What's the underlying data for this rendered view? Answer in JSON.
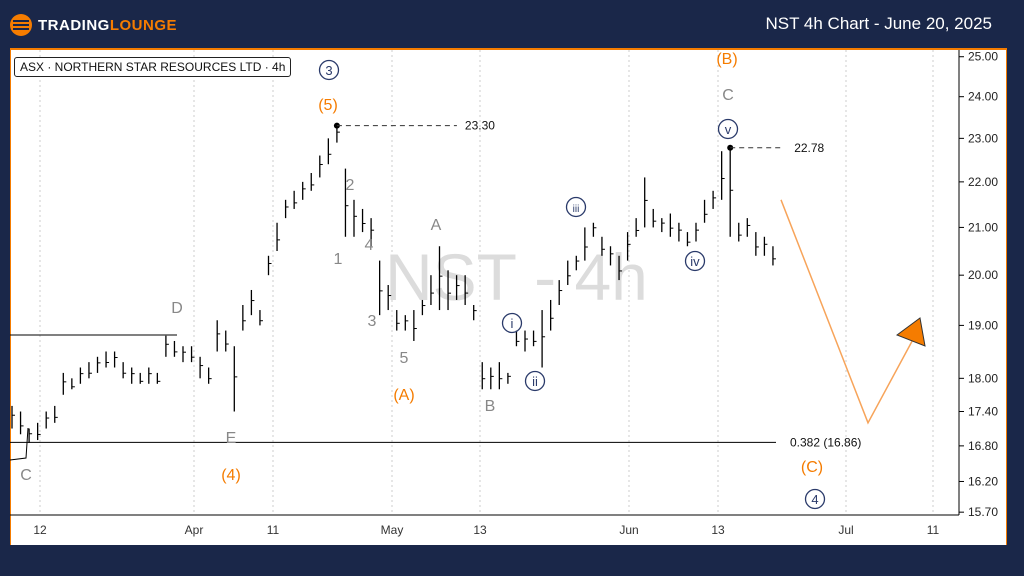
{
  "header": {
    "brand_part1": "TRADING",
    "brand_part2": "LOUNGE",
    "title": "NST 4h Chart - June 20, 2025"
  },
  "symbol_label": "ASX · NORTHERN STAR RESOURCES LTD · 4h",
  "watermark": "NST - 4h",
  "colors": {
    "header_bg": "#1a2749",
    "accent": "#f57c00",
    "wave_navy": "#2a3a6a",
    "wave_gray": "#888888"
  },
  "chart_data": {
    "type": "ohlc-bar",
    "y_scale": "log",
    "ylim": [
      15.7,
      25.0
    ],
    "y_ticks": [
      "25.00",
      "24.00",
      "23.00",
      "22.00",
      "21.00",
      "20.00",
      "19.00",
      "18.00",
      "17.40",
      "16.80",
      "16.20",
      "15.70"
    ],
    "x_ticks": [
      "12",
      "Apr",
      "11",
      "May",
      "13",
      "Jun",
      "13",
      "Jul",
      "11"
    ],
    "grid": "vertical dotted",
    "bars_high_low": [
      [
        17.5,
        17.1
      ],
      [
        17.4,
        17.0
      ],
      [
        17.1,
        16.85
      ],
      [
        17.2,
        16.9
      ],
      [
        17.4,
        17.1
      ],
      [
        17.5,
        17.2
      ],
      [
        18.1,
        17.7
      ],
      [
        18.0,
        17.8
      ],
      [
        18.2,
        17.9
      ],
      [
        18.3,
        18.0
      ],
      [
        18.4,
        18.1
      ],
      [
        18.5,
        18.2
      ],
      [
        18.5,
        18.2
      ],
      [
        18.3,
        18.0
      ],
      [
        18.2,
        17.9
      ],
      [
        18.1,
        17.9
      ],
      [
        18.2,
        17.9
      ],
      [
        18.1,
        17.9
      ],
      [
        18.8,
        18.4
      ],
      [
        18.7,
        18.4
      ],
      [
        18.6,
        18.3
      ],
      [
        18.6,
        18.3
      ],
      [
        18.4,
        18.0
      ],
      [
        18.2,
        17.9
      ],
      [
        19.1,
        18.5
      ],
      [
        18.9,
        18.5
      ],
      [
        18.6,
        17.4
      ],
      [
        19.4,
        18.9
      ],
      [
        19.7,
        19.2
      ],
      [
        19.3,
        19.0
      ],
      [
        20.4,
        20.0
      ],
      [
        21.1,
        20.5
      ],
      [
        21.6,
        21.2
      ],
      [
        21.8,
        21.4
      ],
      [
        22.0,
        21.6
      ],
      [
        22.2,
        21.8
      ],
      [
        22.6,
        22.1
      ],
      [
        23.0,
        22.4
      ],
      [
        23.3,
        22.9
      ],
      [
        22.3,
        20.8
      ],
      [
        21.6,
        20.8
      ],
      [
        21.4,
        20.9
      ],
      [
        21.2,
        20.6
      ],
      [
        20.3,
        19.2
      ],
      [
        19.8,
        19.3
      ],
      [
        19.3,
        18.9
      ],
      [
        19.2,
        18.9
      ],
      [
        19.3,
        18.7
      ],
      [
        19.5,
        19.2
      ],
      [
        20.0,
        19.4
      ],
      [
        20.6,
        19.3
      ],
      [
        20.1,
        19.3
      ],
      [
        20.0,
        19.5
      ],
      [
        20.0,
        19.4
      ],
      [
        19.4,
        19.1
      ],
      [
        18.3,
        17.8
      ],
      [
        18.2,
        17.8
      ],
      [
        18.3,
        17.8
      ],
      [
        18.1,
        17.9
      ],
      [
        18.9,
        18.6
      ],
      [
        18.9,
        18.5
      ],
      [
        18.9,
        18.6
      ],
      [
        19.3,
        18.2
      ],
      [
        19.5,
        18.9
      ],
      [
        19.9,
        19.4
      ],
      [
        20.3,
        19.8
      ],
      [
        20.4,
        20.1
      ],
      [
        21.0,
        20.3
      ],
      [
        21.1,
        20.8
      ],
      [
        20.8,
        20.4
      ],
      [
        20.6,
        20.2
      ],
      [
        20.4,
        19.9
      ],
      [
        20.9,
        20.3
      ],
      [
        21.2,
        20.8
      ],
      [
        22.1,
        21.0
      ],
      [
        21.4,
        21.0
      ],
      [
        21.2,
        20.9
      ],
      [
        21.3,
        20.8
      ],
      [
        21.1,
        20.7
      ],
      [
        20.9,
        20.6
      ],
      [
        21.1,
        20.7
      ],
      [
        21.6,
        21.1
      ],
      [
        21.8,
        21.4
      ],
      [
        22.7,
        21.6
      ],
      [
        22.78,
        20.8
      ],
      [
        21.1,
        20.7
      ],
      [
        21.2,
        20.8
      ],
      [
        20.9,
        20.4
      ],
      [
        20.8,
        20.4
      ],
      [
        20.6,
        20.2
      ]
    ],
    "price_levels": [
      {
        "label": "23.30",
        "value": 23.3
      },
      {
        "label": "22.78",
        "value": 22.78
      },
      {
        "label": "0.382 (16.86)",
        "value": 16.86
      }
    ],
    "projection": [
      {
        "value": 21.6
      },
      {
        "value": 17.2
      },
      {
        "value": 18.8
      }
    ],
    "wave_labels": {
      "navy": [
        "3",
        "v",
        "iii",
        "iv",
        "i",
        "ii",
        "4"
      ],
      "orange": [
        "(5)",
        "(B)",
        "(A)",
        "(4)",
        "(C)"
      ],
      "gray": [
        "C",
        "D",
        "E",
        "C",
        "1",
        "2",
        "3",
        "4",
        "5",
        "A",
        "B"
      ]
    }
  }
}
